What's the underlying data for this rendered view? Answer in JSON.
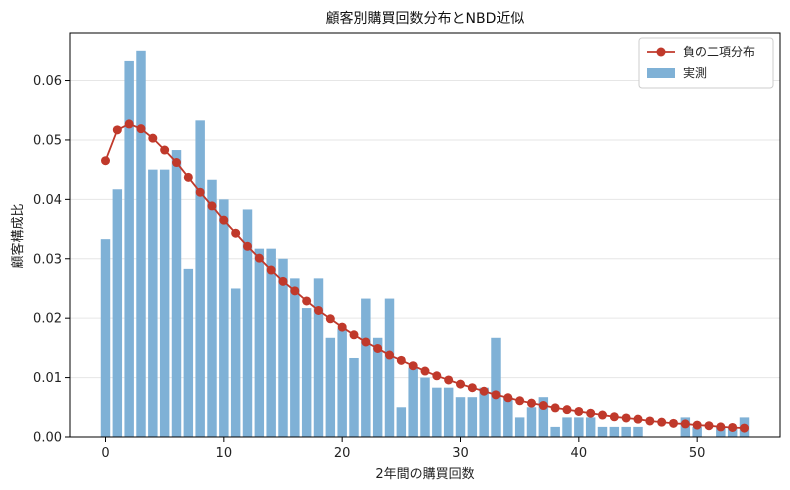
{
  "chart_data": {
    "type": "bar",
    "title": "顧客別購買回数分布とNBD近似",
    "xlabel": "2年間の購買回数",
    "ylabel": "顧客構成比",
    "xlim": [
      -3,
      57
    ],
    "ylim": [
      0,
      0.068
    ],
    "x_ticks": [
      0,
      10,
      20,
      30,
      40,
      50
    ],
    "y_ticks": [
      0.0,
      0.01,
      0.02,
      0.03,
      0.04,
      0.05,
      0.06
    ],
    "y_tick_labels": [
      "0.00",
      "0.01",
      "0.02",
      "0.03",
      "0.04",
      "0.05",
      "0.06"
    ],
    "grid": "horizontal",
    "legend_position": "top-right",
    "x": [
      0,
      1,
      2,
      3,
      4,
      5,
      6,
      7,
      8,
      9,
      10,
      11,
      12,
      13,
      14,
      15,
      16,
      17,
      18,
      19,
      20,
      21,
      22,
      23,
      24,
      25,
      26,
      27,
      28,
      29,
      30,
      31,
      32,
      33,
      34,
      35,
      36,
      37,
      38,
      39,
      40,
      41,
      42,
      43,
      44,
      45,
      46,
      47,
      48,
      49,
      50,
      51,
      52,
      53,
      54
    ],
    "series": [
      {
        "name": "実測",
        "kind": "bar",
        "color": "#7fb1d6",
        "values": [
          0.0333,
          0.0417,
          0.0633,
          0.065,
          0.045,
          0.045,
          0.0483,
          0.0283,
          0.0533,
          0.0433,
          0.04,
          0.025,
          0.0383,
          0.0317,
          0.0317,
          0.03,
          0.0267,
          0.0217,
          0.0267,
          0.0167,
          0.0183,
          0.0133,
          0.0233,
          0.0167,
          0.0233,
          0.005,
          0.0117,
          0.01,
          0.0083,
          0.0083,
          0.0067,
          0.0067,
          0.0083,
          0.0167,
          0.0067,
          0.0033,
          0.005,
          0.0067,
          0.0017,
          0.0033,
          0.0033,
          0.0033,
          0.0017,
          0.0017,
          0.0017,
          0.0017,
          0.0,
          0.0,
          0.0,
          0.0033,
          0.0017,
          0.0,
          0.0017,
          0.0017,
          0.0033
        ]
      },
      {
        "name": "負の二項分布",
        "kind": "line",
        "color": "#c0392b",
        "values": [
          0.0465,
          0.0517,
          0.0527,
          0.0519,
          0.0503,
          0.0483,
          0.0462,
          0.0437,
          0.0412,
          0.0389,
          0.0365,
          0.0343,
          0.0321,
          0.0301,
          0.0281,
          0.0262,
          0.0246,
          0.0229,
          0.0213,
          0.0199,
          0.0185,
          0.0172,
          0.016,
          0.0149,
          0.0138,
          0.0129,
          0.012,
          0.0111,
          0.0103,
          0.0096,
          0.0089,
          0.0083,
          0.0077,
          0.0071,
          0.0066,
          0.0061,
          0.0057,
          0.0053,
          0.0049,
          0.0046,
          0.0043,
          0.004,
          0.0037,
          0.0034,
          0.0032,
          0.003,
          0.0027,
          0.0025,
          0.0023,
          0.0022,
          0.002,
          0.0019,
          0.0017,
          0.0016,
          0.0015
        ]
      }
    ]
  }
}
